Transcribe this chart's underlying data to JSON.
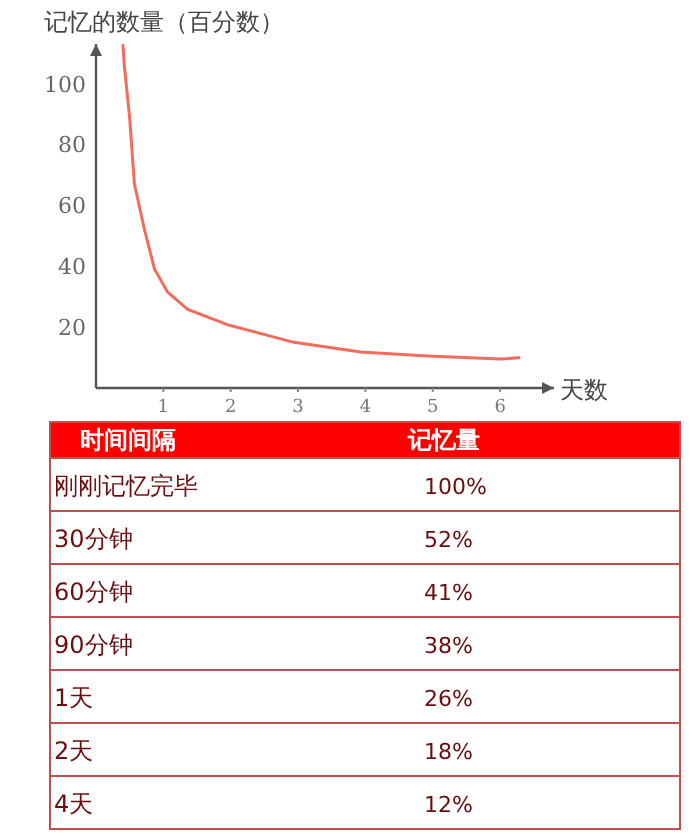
{
  "chart_data": [
    {
      "type": "line",
      "xlabel": "天数",
      "ylabel": "记忆的数量（百分数）",
      "x": [
        0.4,
        0.42,
        0.47,
        0.5,
        0.57,
        0.72,
        0.87,
        1.06,
        1.36,
        1.95,
        2.94,
        3.93,
        4.92,
        6.01,
        6.28
      ],
      "series": [
        {
          "color": "#f26b5b",
          "values": [
            112.6,
            106,
            95.2,
            88.6,
            67,
            52,
            39,
            31.6,
            25.8,
            20.8,
            15,
            11.8,
            10.5,
            9.5,
            9.9
          ]
        }
      ],
      "xlim": [
        0,
        6.8
      ],
      "ylim": [
        0,
        113
      ],
      "xticks": [
        1,
        2,
        3,
        4,
        5,
        6
      ],
      "yticks": [
        20,
        40,
        60,
        80,
        100
      ],
      "grid": false,
      "marker": "none",
      "line_style": "solid"
    },
    {
      "type": "other",
      "xlabel": "时间间隔",
      "ylabel": "记忆量",
      "categories": [
        "刚刚记忆完毕",
        "30分钟",
        "60分钟",
        "90分钟",
        "1天",
        "2天",
        "4天"
      ],
      "value_labels": [
        "100%",
        "52%",
        "41%",
        "38%",
        "26%",
        "18%",
        "12%"
      ]
    }
  ]
}
